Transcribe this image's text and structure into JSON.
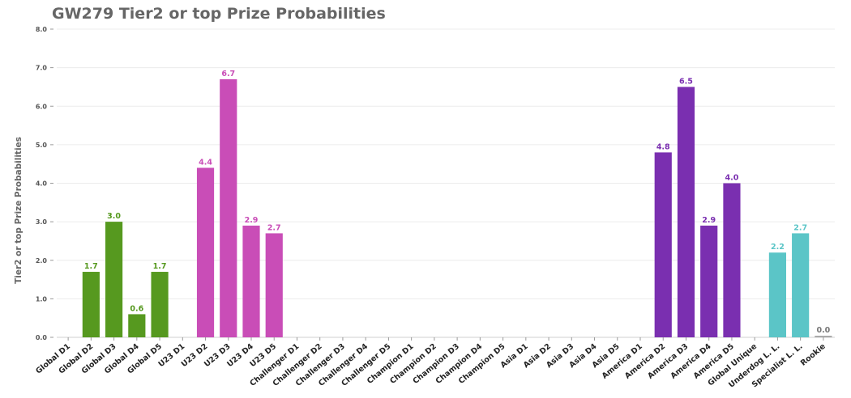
{
  "chart_data": {
    "type": "bar",
    "title": "GW279 Tier2 or top Prize Probabilities",
    "xlabel": "",
    "ylabel": "Tier2 or top Prize Probabilities",
    "ylim": [
      0,
      8
    ],
    "yticks": [
      "0.0",
      "1.0",
      "2.0",
      "3.0",
      "4.0",
      "5.0",
      "6.0",
      "7.0",
      "8.0"
    ],
    "grid": true,
    "categories": [
      "Global D1",
      "Global D2",
      "Global D3",
      "Global D4",
      "Global D5",
      "U23 D1",
      "U23 D2",
      "U23 D3",
      "U23 D4",
      "U23 D5",
      "Challenger D1",
      "Challenger D2",
      "Challenger D3",
      "Challenger D4",
      "Challenger D5",
      "Champion D1",
      "Champion D2",
      "Champion D3",
      "Champion D4",
      "Champion D5",
      "Asia D1",
      "Asia D2",
      "Asia D3",
      "Asia D4",
      "Asia D5",
      "America D1",
      "America D2",
      "America D3",
      "America D4",
      "America D5",
      "Global Unique",
      "Underdog L. L.",
      "Specialist L. L.",
      "Rookie"
    ],
    "values": [
      null,
      1.7,
      3.0,
      0.6,
      1.7,
      null,
      4.4,
      6.7,
      2.9,
      2.7,
      null,
      null,
      null,
      null,
      null,
      null,
      null,
      null,
      null,
      null,
      null,
      null,
      null,
      null,
      null,
      null,
      4.8,
      6.5,
      2.9,
      4.0,
      null,
      2.2,
      2.7,
      0.0
    ],
    "value_labels": [
      null,
      "1.7",
      "3.0",
      "0.6",
      "1.7",
      null,
      "4.4",
      "6.7",
      "2.9",
      "2.7",
      null,
      null,
      null,
      null,
      null,
      null,
      null,
      null,
      null,
      null,
      null,
      null,
      null,
      null,
      null,
      null,
      "4.8",
      "6.5",
      "2.9",
      "4.0",
      null,
      "2.2",
      "2.7",
      "0.0"
    ],
    "colors": [
      "#56991f",
      "#56991f",
      "#56991f",
      "#56991f",
      "#56991f",
      "#c94db7",
      "#c94db7",
      "#c94db7",
      "#c94db7",
      "#c94db7",
      "#888888",
      "#888888",
      "#888888",
      "#888888",
      "#888888",
      "#888888",
      "#888888",
      "#888888",
      "#888888",
      "#888888",
      "#888888",
      "#888888",
      "#888888",
      "#888888",
      "#888888",
      "#7a2fb0",
      "#7a2fb0",
      "#7a2fb0",
      "#7a2fb0",
      "#7a2fb0",
      "#5bc5c7",
      "#5bc5c7",
      "#5bc5c7",
      "#aaaaaa"
    ],
    "label_colors": [
      "#56991f",
      "#56991f",
      "#56991f",
      "#56991f",
      "#56991f",
      "#c94db7",
      "#c94db7",
      "#c94db7",
      "#c94db7",
      "#c94db7",
      "#888888",
      "#888888",
      "#888888",
      "#888888",
      "#888888",
      "#888888",
      "#888888",
      "#888888",
      "#888888",
      "#888888",
      "#888888",
      "#888888",
      "#888888",
      "#888888",
      "#888888",
      "#7a2fb0",
      "#7a2fb0",
      "#7a2fb0",
      "#7a2fb0",
      "#7a2fb0",
      "#5bc5c7",
      "#5bc5c7",
      "#5bc5c7",
      "#777777"
    ]
  }
}
